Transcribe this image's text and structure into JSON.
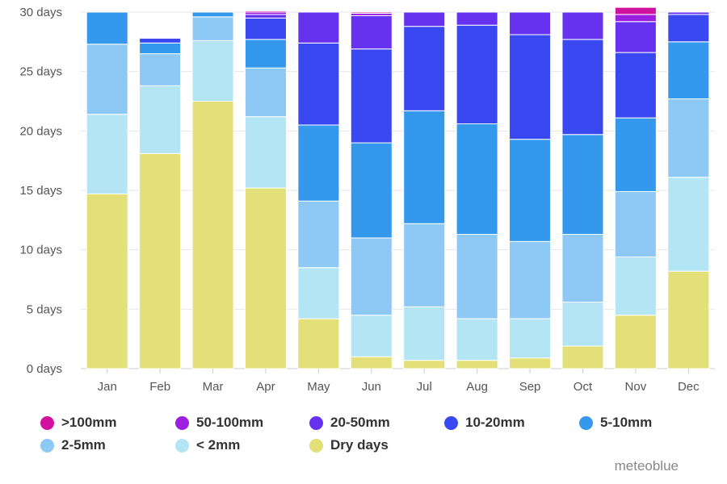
{
  "chart_data": {
    "type": "bar",
    "stacked": true,
    "categories": [
      "Jan",
      "Feb",
      "Mar",
      "Apr",
      "May",
      "Jun",
      "Jul",
      "Aug",
      "Sep",
      "Oct",
      "Nov",
      "Dec"
    ],
    "ylim": [
      0,
      30
    ],
    "yticks": [
      0,
      5,
      10,
      15,
      20,
      25,
      30
    ],
    "ytick_labels": [
      "0 days",
      "5 days",
      "10 days",
      "15 days",
      "20 days",
      "25 days",
      "30 days"
    ],
    "grid": true,
    "legend_position": "bottom",
    "series": [
      {
        "name": "Dry days",
        "color": "#e3e07a",
        "values": [
          14.7,
          18.1,
          22.5,
          15.2,
          4.2,
          1.0,
          0.7,
          0.7,
          0.9,
          1.9,
          4.5,
          8.2
        ]
      },
      {
        "name": "< 2mm",
        "color": "#b3e5f5",
        "values": [
          6.7,
          5.7,
          5.1,
          6.0,
          4.3,
          3.5,
          4.5,
          3.5,
          3.3,
          3.7,
          4.9,
          7.9
        ]
      },
      {
        "name": "2-5mm",
        "color": "#8ec8f5",
        "values": [
          5.9,
          2.7,
          2.0,
          4.1,
          5.6,
          6.5,
          7.0,
          7.1,
          6.5,
          5.7,
          5.5,
          6.6
        ]
      },
      {
        "name": "5-10mm",
        "color": "#3499ec",
        "values": [
          2.7,
          0.9,
          0.4,
          2.4,
          6.4,
          8.0,
          9.5,
          9.3,
          8.6,
          8.4,
          6.2,
          4.8
        ]
      },
      {
        "name": "10-20mm",
        "color": "#3a48f2",
        "values": [
          0,
          0.4,
          0,
          1.8,
          6.9,
          7.9,
          7.1,
          8.3,
          8.8,
          8.0,
          5.5,
          2.3
        ]
      },
      {
        "name": "20-50mm",
        "color": "#6632f0",
        "values": [
          0,
          0,
          0,
          0.3,
          2.6,
          2.8,
          1.2,
          1.1,
          1.9,
          2.3,
          2.6,
          0.2
        ]
      },
      {
        "name": "50-100mm",
        "color": "#9c1fe0",
        "values": [
          0,
          0,
          0,
          0.2,
          0,
          0.2,
          0,
          0,
          0,
          0,
          0.6,
          0
        ]
      },
      {
        "name": ">100mm",
        "color": "#d0129e",
        "values": [
          0,
          0,
          0,
          0.1,
          0,
          0.1,
          0,
          0,
          0,
          0,
          0.6,
          0
        ]
      }
    ]
  },
  "legend": [
    {
      "label": ">100mm",
      "color": "#d0129e"
    },
    {
      "label": "50-100mm",
      "color": "#9c1fe0"
    },
    {
      "label": "20-50mm",
      "color": "#6632f0"
    },
    {
      "label": "10-20mm",
      "color": "#3a48f2"
    },
    {
      "label": "5-10mm",
      "color": "#3499ec"
    },
    {
      "label": "2-5mm",
      "color": "#8ec8f5"
    },
    {
      "label": "< 2mm",
      "color": "#b3e5f5"
    },
    {
      "label": "Dry days",
      "color": "#e3e07a"
    }
  ],
  "brand": "meteoblue"
}
